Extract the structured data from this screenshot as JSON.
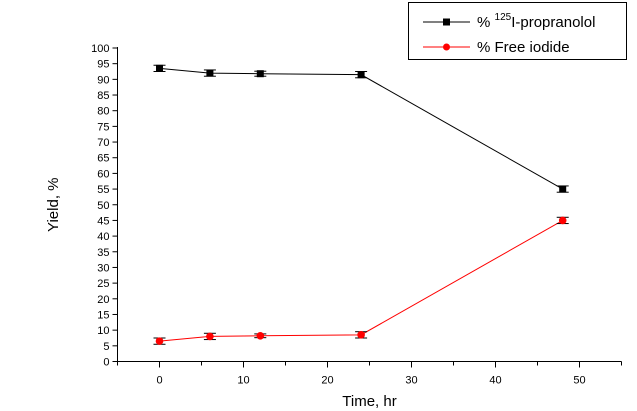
{
  "chart_data": {
    "type": "line",
    "title": "",
    "xlabel": "Time, hr",
    "ylabel": "Yield, %",
    "xlim": [
      -5,
      55
    ],
    "ylim": [
      0,
      100
    ],
    "xticks": [
      0,
      10,
      20,
      30,
      40,
      50
    ],
    "yticks": [
      0,
      5,
      10,
      15,
      20,
      25,
      30,
      35,
      40,
      45,
      50,
      55,
      60,
      65,
      70,
      75,
      80,
      85,
      90,
      95,
      100
    ],
    "legend_position": "top-right",
    "series": [
      {
        "name": "% ",
        "sup": "125",
        "name_rest": "I-propranolol",
        "color": "#000000",
        "marker": "square",
        "x": [
          0,
          6,
          12,
          24,
          48
        ],
        "y": [
          93.5,
          92,
          91.8,
          91.5,
          55
        ],
        "err": [
          1,
          1,
          0.8,
          1,
          1
        ]
      },
      {
        "name": "% Free iodide",
        "color": "#ff0000",
        "marker": "circle",
        "x": [
          0,
          6,
          12,
          24,
          48
        ],
        "y": [
          6.5,
          8,
          8.2,
          8.5,
          45
        ],
        "err": [
          1,
          1,
          0.6,
          1,
          1
        ]
      }
    ]
  }
}
